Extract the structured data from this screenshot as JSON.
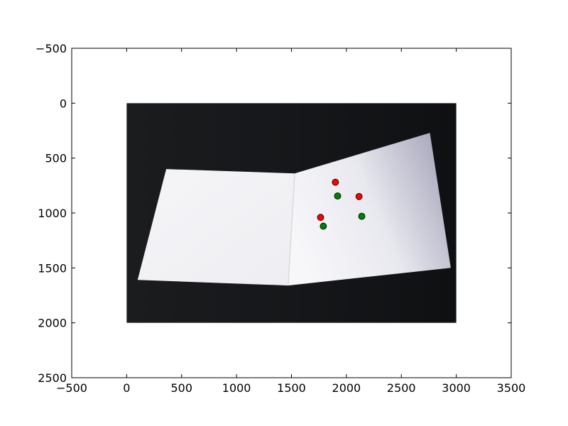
{
  "chart_data": {
    "type": "scatter",
    "title": "",
    "xlabel": "",
    "ylabel": "",
    "xlim": [
      -500,
      3500
    ],
    "ylim": [
      2500,
      -500
    ],
    "y_axis_inverted": true,
    "grid": false,
    "legend": "none",
    "x_ticks": [
      "−500",
      "0",
      "500",
      "1000",
      "1500",
      "2000",
      "2500",
      "3000",
      "3500"
    ],
    "x_tick_values": [
      -500,
      0,
      500,
      1000,
      1500,
      2000,
      2500,
      3000,
      3500
    ],
    "y_ticks": [
      "−500",
      "0",
      "500",
      "1000",
      "1500",
      "2000",
      "2500"
    ],
    "y_tick_values": [
      -500,
      0,
      500,
      1000,
      1500,
      2000,
      2500
    ],
    "background_image": {
      "description": "photo of a folded white card on a dark background",
      "extent": {
        "x": [
          0,
          3000
        ],
        "y": [
          0,
          2000
        ]
      },
      "card_polygon_left": [
        [
          360,
          600
        ],
        [
          1530,
          640
        ],
        [
          1470,
          1660
        ],
        [
          100,
          1610
        ]
      ],
      "card_polygon_right": [
        [
          1530,
          640
        ],
        [
          2760,
          270
        ],
        [
          2950,
          1500
        ],
        [
          1470,
          1660
        ]
      ]
    },
    "series": [
      {
        "color": "#ff0000",
        "points": [
          {
            "x": 1900,
            "y": 720
          },
          {
            "x": 2115,
            "y": 850
          },
          {
            "x": 1765,
            "y": 1040
          }
        ]
      },
      {
        "color": "#008000",
        "points": [
          {
            "x": 1920,
            "y": 845
          },
          {
            "x": 2140,
            "y": 1030
          },
          {
            "x": 1790,
            "y": 1120
          }
        ]
      }
    ]
  }
}
